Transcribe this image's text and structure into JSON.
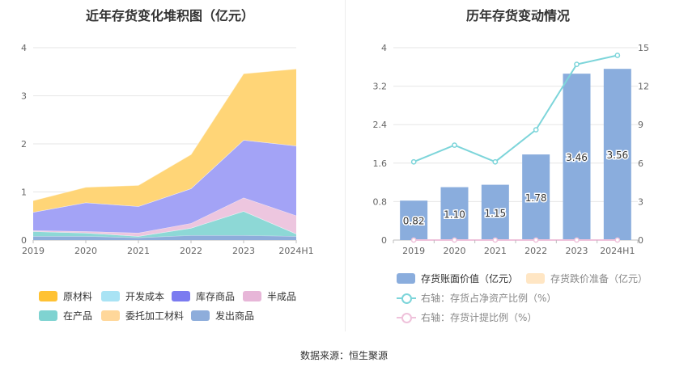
{
  "source_text": "数据来源：恒生聚源",
  "chart_data": [
    {
      "type": "area",
      "stacked": true,
      "title": "近年存货变化堆积图（亿元）",
      "x": [
        "2019",
        "2020",
        "2021",
        "2022",
        "2023",
        "2024H1"
      ],
      "ylim": [
        0,
        4
      ],
      "yticks": [
        0,
        1,
        2,
        3,
        4
      ],
      "grid": true,
      "legend_position": "bottom",
      "series": [
        {
          "name": "发出商品",
          "color": "#8EADDB",
          "values": [
            0.08,
            0.08,
            0.05,
            0.1,
            0.1,
            0.08
          ]
        },
        {
          "name": "在产品",
          "color": "#8DD8D6",
          "values": [
            0.1,
            0.07,
            0.03,
            0.15,
            0.5,
            0.05
          ]
        },
        {
          "name": "委托加工材料",
          "color": "#FFD79A",
          "values": [
            0.0,
            0.0,
            0.0,
            0.0,
            0.0,
            0.0
          ]
        },
        {
          "name": "半成品",
          "color": "#EDC6DF",
          "values": [
            0.02,
            0.03,
            0.07,
            0.1,
            0.28,
            0.38
          ]
        },
        {
          "name": "库存商品",
          "color": "#A3A3F6",
          "values": [
            0.38,
            0.6,
            0.55,
            0.72,
            1.2,
            1.45
          ]
        },
        {
          "name": "开发成本",
          "color": "#A9E3F4",
          "values": [
            0.0,
            0.0,
            0.0,
            0.0,
            0.0,
            0.0
          ]
        },
        {
          "name": "原材料",
          "color": "#FFD577",
          "values": [
            0.24,
            0.32,
            0.44,
            0.71,
            1.38,
            1.6
          ]
        }
      ],
      "legend": [
        {
          "name": "原材料",
          "color": "#FFC234"
        },
        {
          "name": "开发成本",
          "color": "#A9E3F4"
        },
        {
          "name": "库存商品",
          "color": "#7B7BF0"
        },
        {
          "name": "半成品",
          "color": "#E7B6D8"
        },
        {
          "name": "在产品",
          "color": "#7FD3D1"
        },
        {
          "name": "委托加工材料",
          "color": "#FFD79A"
        },
        {
          "name": "发出商品",
          "color": "#8EADDB"
        }
      ]
    },
    {
      "type": "bar",
      "title": "历年存货变动情况",
      "categories": [
        "2019",
        "2020",
        "2021",
        "2022",
        "2023",
        "2024H1"
      ],
      "ylim": [
        0,
        4
      ],
      "yticks": [
        0,
        0.8,
        1.6,
        2.4,
        3.2,
        4
      ],
      "y2lim": [
        0,
        15
      ],
      "y2ticks": [
        0,
        3,
        6,
        9,
        12,
        15
      ],
      "grid": true,
      "legend_position": "bottom",
      "series": [
        {
          "name": "存货账面价值（亿元）",
          "type": "bar",
          "axis": "left",
          "color": "#8AADDD",
          "values": [
            0.82,
            1.1,
            1.15,
            1.78,
            3.46,
            3.56
          ],
          "labels": [
            "0.82",
            "1.10",
            "1.15",
            "1.78",
            "3.46",
            "3.56"
          ]
        },
        {
          "name": "存货跌价准备（亿元）",
          "type": "bar",
          "axis": "left",
          "color": "#FFE6C4",
          "values": [
            0,
            0,
            0,
            0,
            0,
            0
          ]
        },
        {
          "name": "右轴：存货占净资产比例（%）",
          "type": "line",
          "axis": "right",
          "color": "#7DD5DA",
          "values": [
            6.1,
            7.4,
            6.1,
            8.6,
            13.7,
            14.4
          ]
        },
        {
          "name": "右轴：存货计提比例（%）",
          "type": "line",
          "axis": "right",
          "color": "#EFC2DB",
          "values": [
            0,
            0,
            0,
            0,
            0,
            0
          ]
        }
      ]
    }
  ]
}
